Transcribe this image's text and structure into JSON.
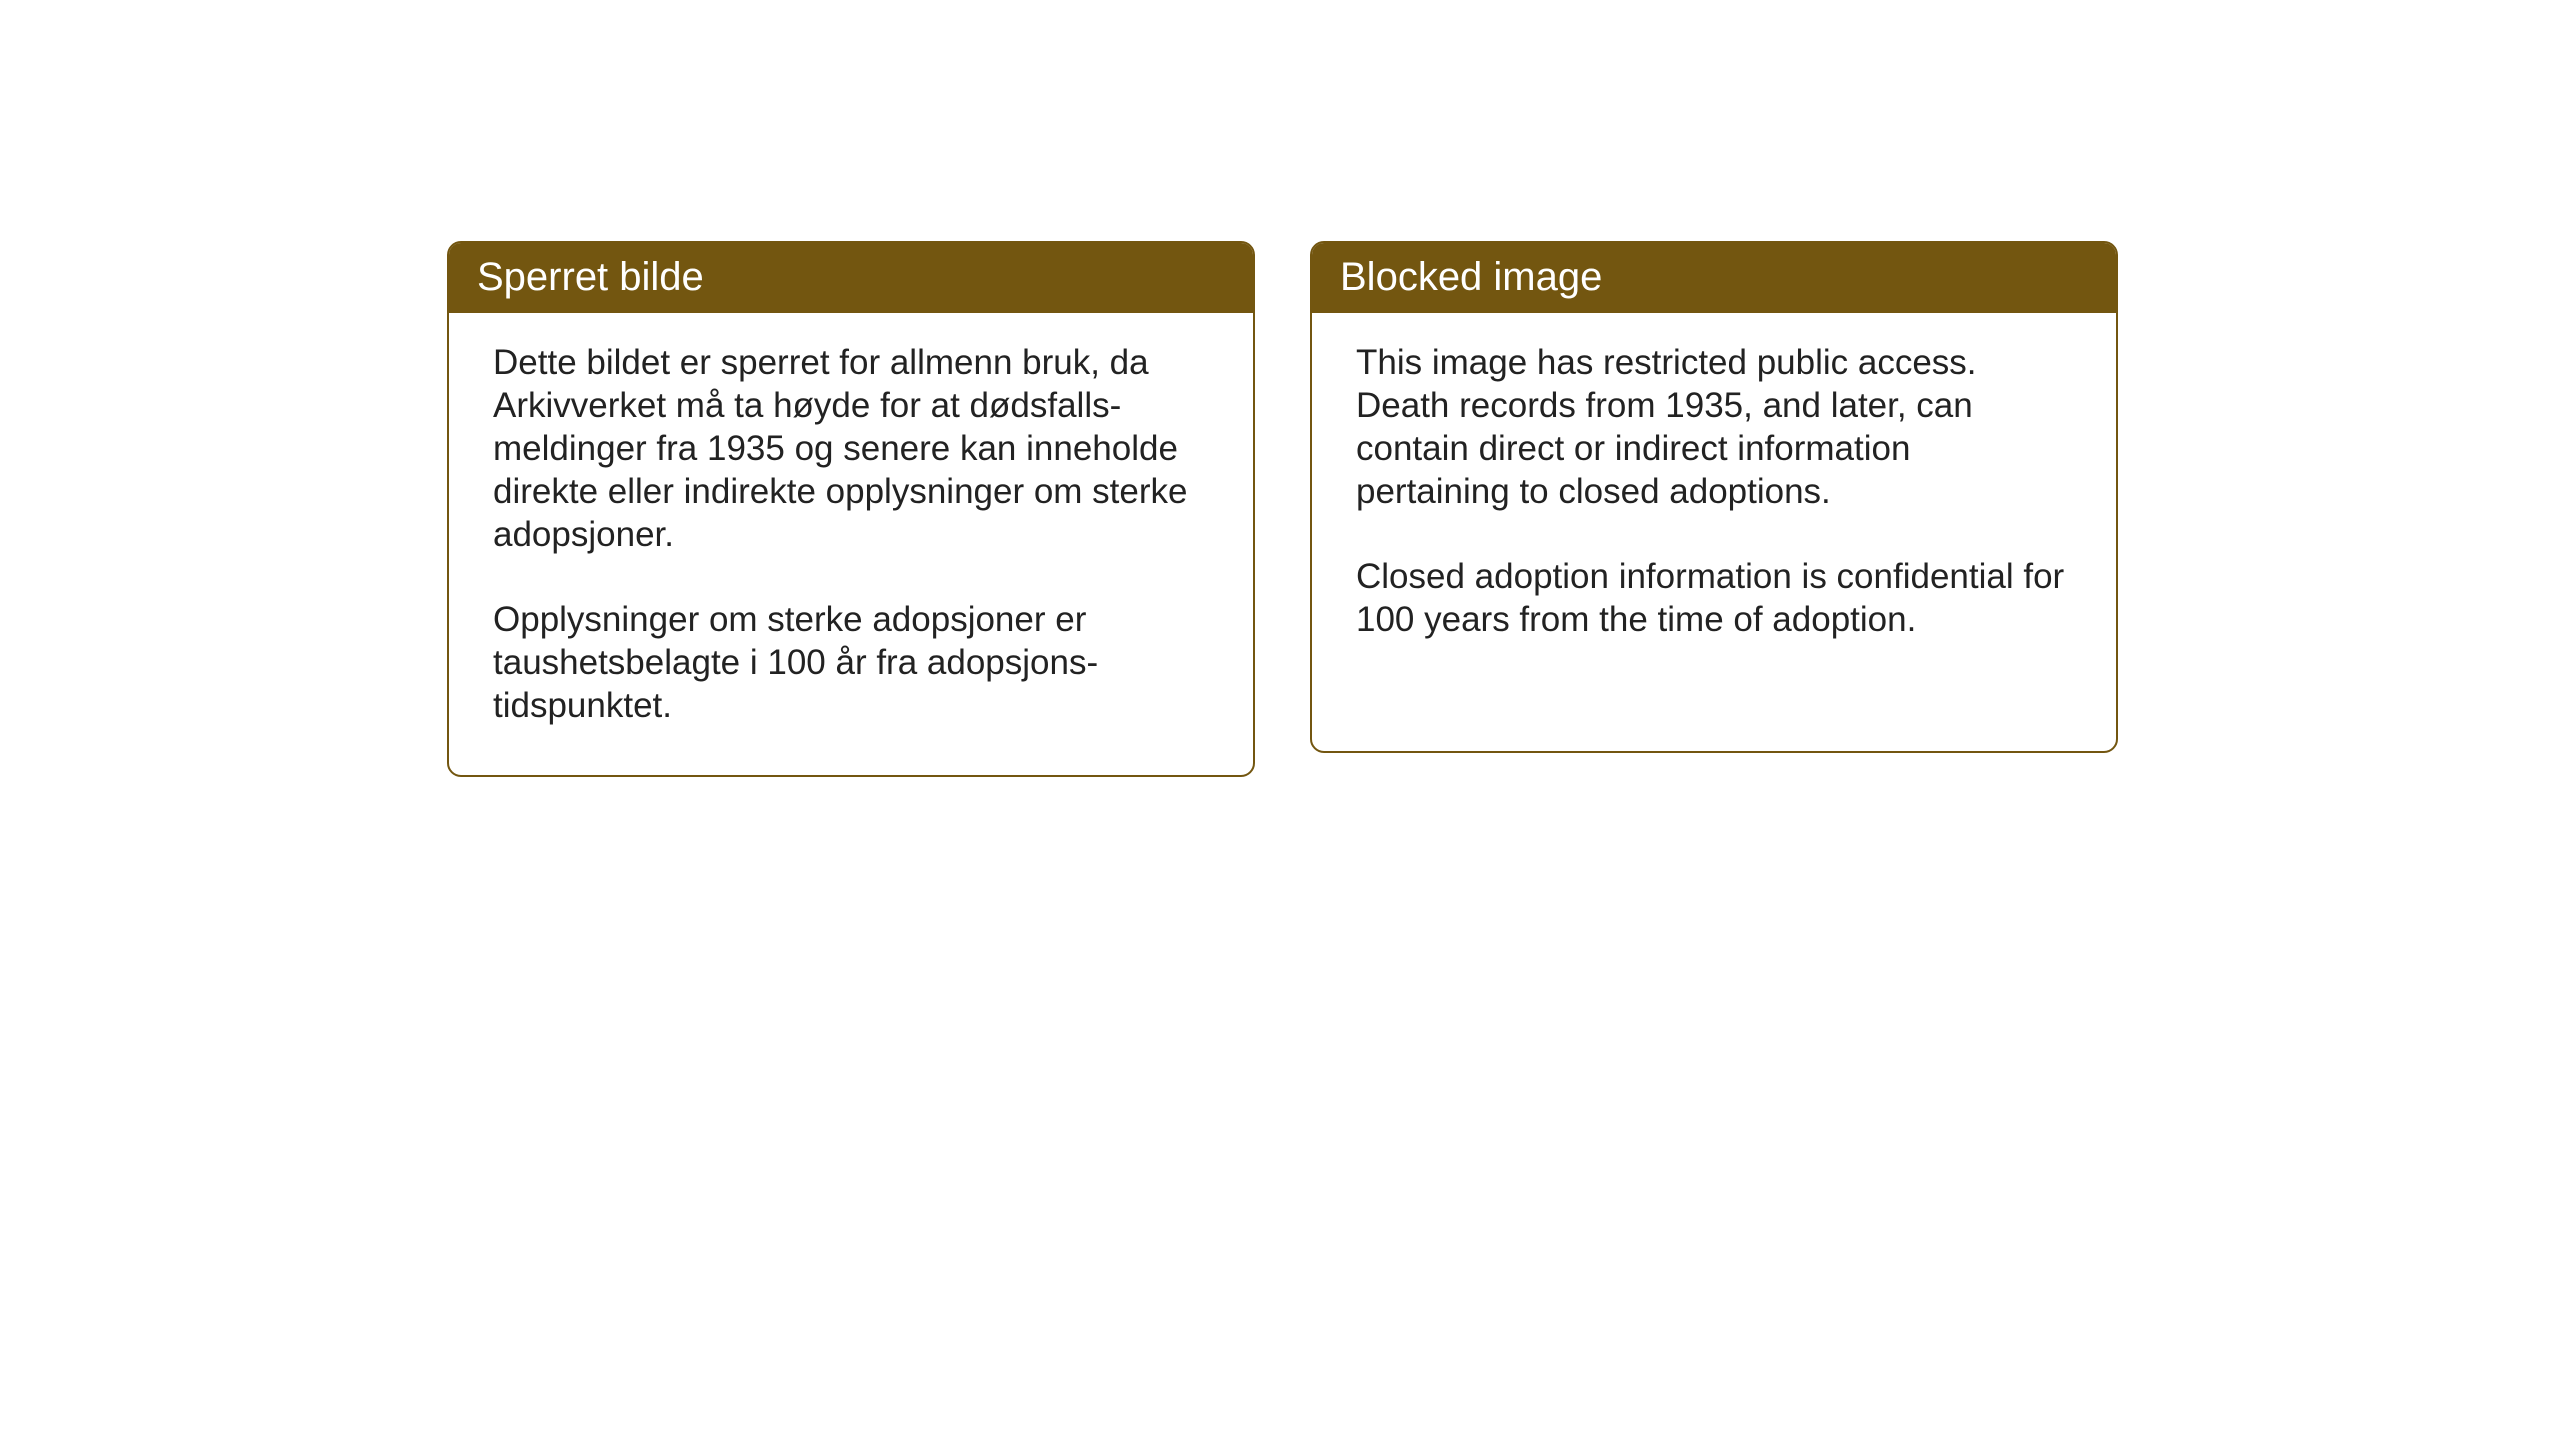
{
  "cards": {
    "norwegian": {
      "title": "Sperret bilde",
      "paragraph1": "Dette bildet er sperret for allmenn bruk, da Arkivverket må ta høyde for at dødsfalls-meldinger fra 1935 og senere kan inneholde direkte eller indirekte opplysninger om sterke adopsjoner.",
      "paragraph2": "Opplysninger om sterke adopsjoner er taushetsbelagte i 100 år fra adopsjons-tidspunktet."
    },
    "english": {
      "title": "Blocked image",
      "paragraph1": "This image has restricted public access. Death records from 1935, and later, can contain direct or indirect information pertaining to closed adoptions.",
      "paragraph2": "Closed adoption information is confidential for 100 years from the time of adoption."
    }
  },
  "styling": {
    "header_bg_color": "#735610",
    "header_text_color": "#ffffff",
    "border_color": "#735610",
    "body_text_color": "#222222",
    "card_bg_color": "#ffffff",
    "page_bg_color": "#ffffff",
    "header_fontsize": 40,
    "body_fontsize": 35,
    "border_radius": 14,
    "border_width": 2
  }
}
